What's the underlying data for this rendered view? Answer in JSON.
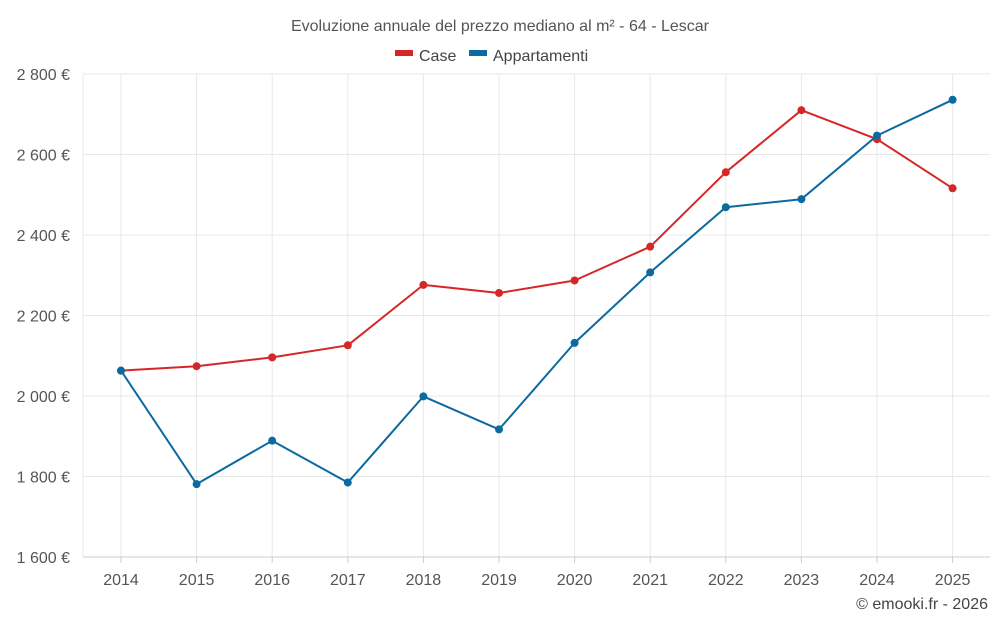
{
  "chart_data": {
    "type": "line",
    "title": "Evoluzione annuale del prezzo mediano al m² - 64 - Lescar",
    "categories": [
      "2014",
      "2015",
      "2016",
      "2017",
      "2018",
      "2019",
      "2020",
      "2021",
      "2022",
      "2023",
      "2024",
      "2025"
    ],
    "series": [
      {
        "name": "Case",
        "color": "#d62728",
        "values": [
          2063,
          2074,
          2096,
          2126,
          2276,
          2256,
          2287,
          2371,
          2556,
          2710,
          2638,
          2516
        ]
      },
      {
        "name": "Appartamenti",
        "color": "#0b6a9f",
        "values": [
          2063,
          1781,
          1889,
          1785,
          1999,
          1917,
          2132,
          2307,
          2469,
          2489,
          2647,
          2736
        ]
      }
    ],
    "ylim": [
      1600,
      2800
    ],
    "yticks": [
      1600,
      1800,
      2000,
      2200,
      2400,
      2600,
      2800
    ],
    "ytick_labels": [
      "1 600 €",
      "1 800 €",
      "2 000 €",
      "2 200 €",
      "2 400 €",
      "2 600 €",
      "2 800 €"
    ],
    "xlabel": "",
    "ylabel": "",
    "grid": true,
    "legend_position": "top-center"
  },
  "credit": "© emooki.fr - 2026"
}
